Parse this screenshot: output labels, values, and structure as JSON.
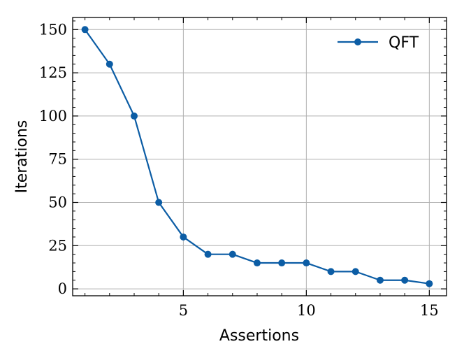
{
  "chart_data": {
    "type": "line",
    "title": "",
    "xlabel": "Assertions",
    "ylabel": "Iterations",
    "xlim": [
      0.5,
      15.7
    ],
    "ylim": [
      -4,
      157
    ],
    "xticks": [
      5,
      10,
      15
    ],
    "yticks": [
      0,
      25,
      50,
      75,
      100,
      125,
      150
    ],
    "grid": true,
    "legend_position": "top-right",
    "series": [
      {
        "name": "QFT",
        "color": "#0c5da5",
        "marker": "circle",
        "x": [
          1,
          2,
          3,
          4,
          5,
          6,
          7,
          8,
          9,
          10,
          11,
          12,
          13,
          14,
          15
        ],
        "y": [
          150,
          130,
          100,
          50,
          30,
          20,
          20,
          15,
          15,
          15,
          10,
          10,
          5,
          5,
          3
        ]
      }
    ]
  }
}
